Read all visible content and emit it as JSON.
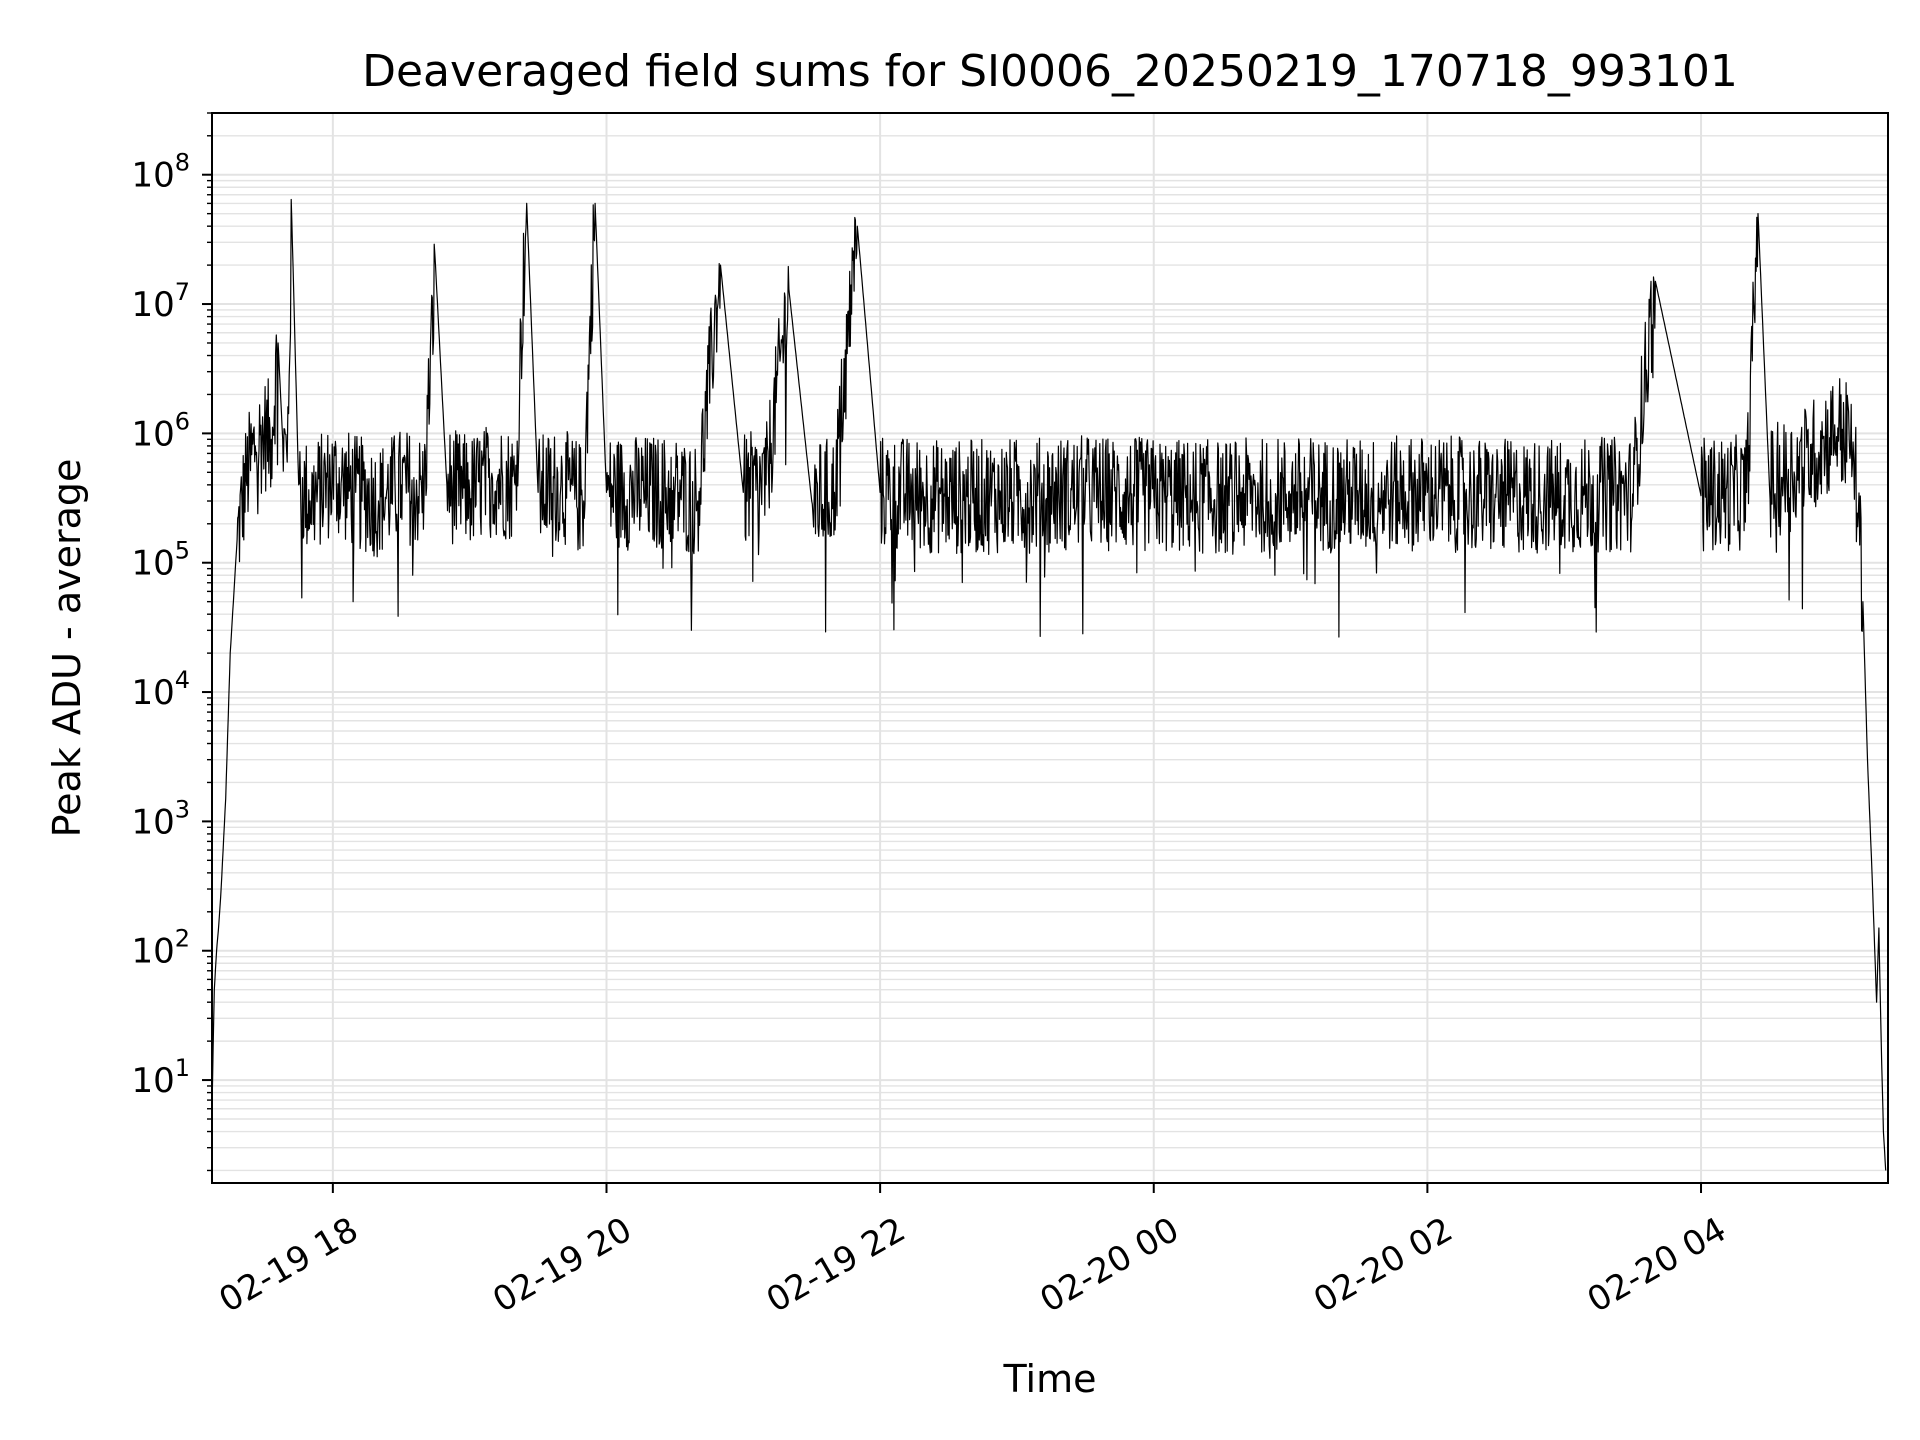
{
  "chart_data": {
    "type": "line",
    "title": "Deaveraged field sums for SI0006_20250219_170718_993101",
    "xlabel": "Time",
    "ylabel": "Peak ADU - average",
    "y_scale": "log",
    "xlim": [
      "2025-02-19 17:07",
      "2025-02-20 05:22"
    ],
    "ylim": [
      1.6,
      300000000.0
    ],
    "grid": true,
    "x_ticks": [
      "02-19 18",
      "02-19 20",
      "02-19 22",
      "02-20 00",
      "02-20 02",
      "02-20 04"
    ],
    "x_tick_times": [
      "2025-02-19 18:00",
      "2025-02-19 20:00",
      "2025-02-19 22:00",
      "2025-02-20 00:00",
      "2025-02-20 02:00",
      "2025-02-20 04:00"
    ],
    "y_ticks": [
      {
        "base": "10",
        "exp": "1",
        "value": 10
      },
      {
        "base": "10",
        "exp": "2",
        "value": 100
      },
      {
        "base": "10",
        "exp": "3",
        "value": 1000
      },
      {
        "base": "10",
        "exp": "4",
        "value": 10000
      },
      {
        "base": "10",
        "exp": "5",
        "value": 100000
      },
      {
        "base": "10",
        "exp": "6",
        "value": 1000000
      },
      {
        "base": "10",
        "exp": "7",
        "value": 10000000
      },
      {
        "base": "10",
        "exp": "8",
        "value": 100000000
      }
    ],
    "line_color": "#000000",
    "grid_color": "#e3e3e3",
    "series": [
      {
        "x": [
          "2025-02-19 17:07",
          "2025-02-19 17:08",
          "2025-02-19 17:09",
          "2025-02-19 17:10",
          "2025-02-19 17:11",
          "2025-02-19 17:13",
          "2025-02-19 17:15",
          "2025-02-19 17:18",
          "2025-02-19 17:22",
          "2025-02-19 17:26",
          "2025-02-19 17:30",
          "2025-02-19 17:33",
          "2025-02-19 17:36",
          "2025-02-19 17:38",
          "2025-02-19 17:40",
          "2025-02-19 17:42",
          "2025-02-19 17:45",
          "2025-02-19 17:50",
          "2025-02-19 18:00",
          "2025-02-19 18:10",
          "2025-02-19 18:20",
          "2025-02-19 18:30",
          "2025-02-19 18:40",
          "2025-02-19 18:45",
          "2025-02-19 18:50",
          "2025-02-19 19:00",
          "2025-02-19 19:10",
          "2025-02-19 19:20",
          "2025-02-19 19:25",
          "2025-02-19 19:30",
          "2025-02-19 19:40",
          "2025-02-19 19:50",
          "2025-02-19 19:55",
          "2025-02-19 20:00",
          "2025-02-19 20:30",
          "2025-02-19 20:40",
          "2025-02-19 20:50",
          "2025-02-19 21:00",
          "2025-02-19 21:10",
          "2025-02-19 21:20",
          "2025-02-19 21:30",
          "2025-02-19 21:40",
          "2025-02-19 21:50",
          "2025-02-19 22:00",
          "2025-02-19 22:30",
          "2025-02-19 23:00",
          "2025-02-19 23:30",
          "2025-02-20 00:00",
          "2025-02-20 00:30",
          "2025-02-20 01:00",
          "2025-02-20 01:30",
          "2025-02-20 02:00",
          "2025-02-20 02:30",
          "2025-02-20 03:00",
          "2025-02-20 03:30",
          "2025-02-20 03:40",
          "2025-02-20 04:00",
          "2025-02-20 04:20",
          "2025-02-20 04:25",
          "2025-02-20 04:30",
          "2025-02-20 04:40",
          "2025-02-20 04:50",
          "2025-02-20 04:55",
          "2025-02-20 05:00",
          "2025-02-20 05:05",
          "2025-02-20 05:07",
          "2025-02-20 05:09",
          "2025-02-20 05:11",
          "2025-02-20 05:13",
          "2025-02-20 05:15",
          "2025-02-20 05:17",
          "2025-02-20 05:18",
          "2025-02-20 05:19",
          "2025-02-20 05:20",
          "2025-02-20 05:21"
        ],
        "y": [
          6,
          50,
          100,
          160,
          300,
          1500,
          20000,
          150000,
          450000,
          800000,
          1000000,
          900000,
          5000000,
          900000,
          600000,
          45000000,
          400000,
          300000,
          450000,
          350000,
          300000,
          400000,
          350000,
          20000000,
          400000,
          350000,
          450000,
          400000,
          60000000,
          350000,
          400000,
          300000,
          60000000,
          350000,
          350000,
          300000,
          20000000,
          350000,
          400000,
          13000000,
          300000,
          350000,
          40000000,
          350000,
          320000,
          330000,
          350000,
          330000,
          320000,
          340000,
          330000,
          350000,
          320000,
          330000,
          340000,
          15000000,
          330000,
          350000,
          50000000,
          400000,
          500000,
          700000,
          900000,
          1100000,
          900000,
          600000,
          250000,
          50000,
          3000,
          400,
          40,
          150,
          20,
          4,
          2
        ]
      }
    ]
  }
}
